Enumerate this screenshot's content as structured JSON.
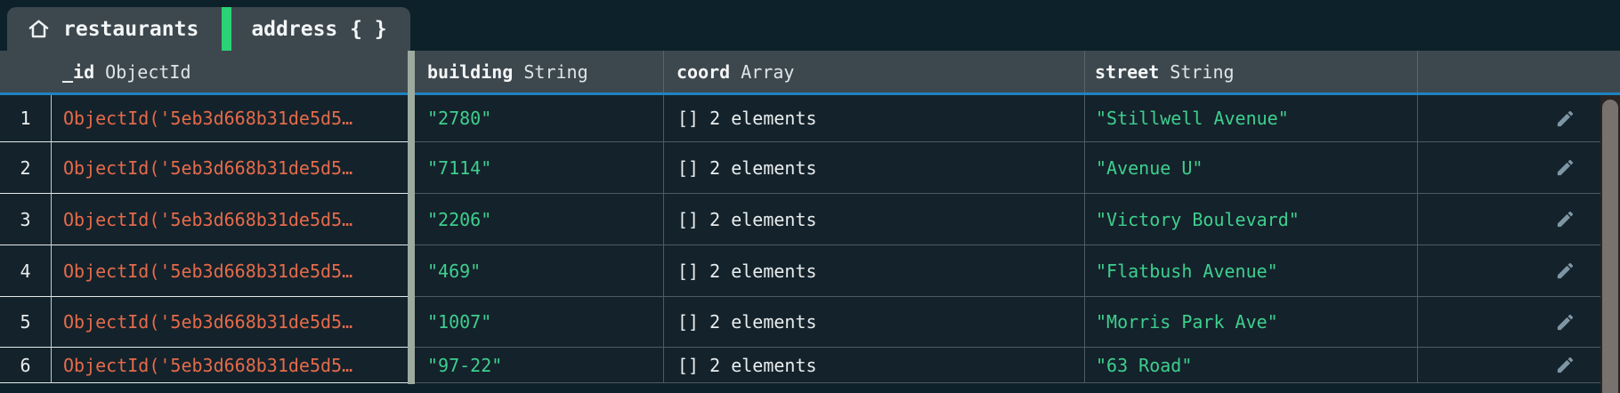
{
  "tab_bar": {
    "collection_tab": {
      "icon": "home-icon",
      "label": "restaurants"
    },
    "field_tab": {
      "label": "address { }"
    }
  },
  "table": {
    "columns": [
      {
        "name": "_id",
        "type": "ObjectId"
      },
      {
        "name": "building",
        "type": "String"
      },
      {
        "name": "coord",
        "type": "Array"
      },
      {
        "name": "street",
        "type": "String"
      }
    ],
    "rows": [
      {
        "num": "1",
        "id": "ObjectId('5eb3d668b31de5d5…",
        "building": "\"2780\"",
        "coord": "[] 2 elements",
        "street": "\"Stillwell Avenue\""
      },
      {
        "num": "2",
        "id": "ObjectId('5eb3d668b31de5d5…",
        "building": "\"7114\"",
        "coord": "[] 2 elements",
        "street": "\"Avenue U\""
      },
      {
        "num": "3",
        "id": "ObjectId('5eb3d668b31de5d5…",
        "building": "\"2206\"",
        "coord": "[] 2 elements",
        "street": "\"Victory Boulevard\""
      },
      {
        "num": "4",
        "id": "ObjectId('5eb3d668b31de5d5…",
        "building": "\"469\"",
        "coord": "[] 2 elements",
        "street": "\"Flatbush Avenue\""
      },
      {
        "num": "5",
        "id": "ObjectId('5eb3d668b31de5d5…",
        "building": "\"1007\"",
        "coord": "[] 2 elements",
        "street": "\"Morris Park Ave\""
      },
      {
        "num": "6",
        "id": "ObjectId('5eb3d668b31de5d5…",
        "building": "\"97-22\"",
        "coord": "[] 2 elements",
        "street": "\"63 Road\""
      }
    ],
    "edit_icon": "pencil-icon"
  },
  "colors": {
    "backdrop": "#0d212a",
    "panel": "#3d484e",
    "row_bg": "#14222b",
    "accent_green": "#2bd376",
    "header_underline_blue": "#1d84c2",
    "objectid_orange": "#e56b4a",
    "string_green": "#3ecf8e",
    "selected_column_bar": "#9dab9f"
  }
}
